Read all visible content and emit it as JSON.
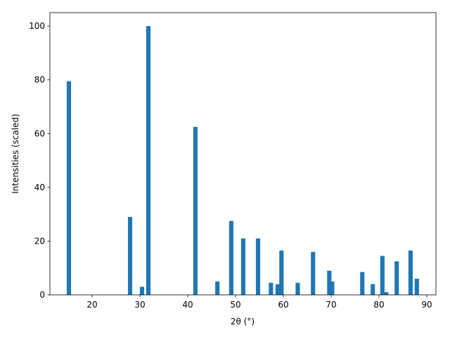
{
  "chart_data": {
    "type": "bar",
    "x_label": "2θ (°)",
    "y_label": "Intensities (scaled)",
    "x": [
      15.15,
      27.94,
      30.44,
      31.76,
      41.6,
      46.2,
      49.1,
      51.6,
      54.7,
      57.4,
      58.8,
      59.6,
      63.0,
      66.2,
      69.6,
      70.2,
      76.5,
      78.7,
      80.7,
      81.5,
      83.7,
      86.6,
      87.9
    ],
    "values": [
      79.5,
      29,
      3,
      100,
      62.5,
      5,
      27.5,
      21,
      21,
      4.5,
      4,
      16.5,
      4.5,
      16,
      9,
      5,
      8.5,
      4,
      14.5,
      1,
      12.5,
      16.5,
      6
    ],
    "bar_width": 0.9,
    "color": "#1f77b4",
    "xlim": [
      11.18,
      91.9
    ],
    "ylim": [
      0,
      105
    ],
    "xticks": [
      20,
      30,
      40,
      50,
      60,
      70,
      80,
      90
    ],
    "yticks": [
      0,
      20,
      40,
      60,
      80,
      100
    ]
  }
}
